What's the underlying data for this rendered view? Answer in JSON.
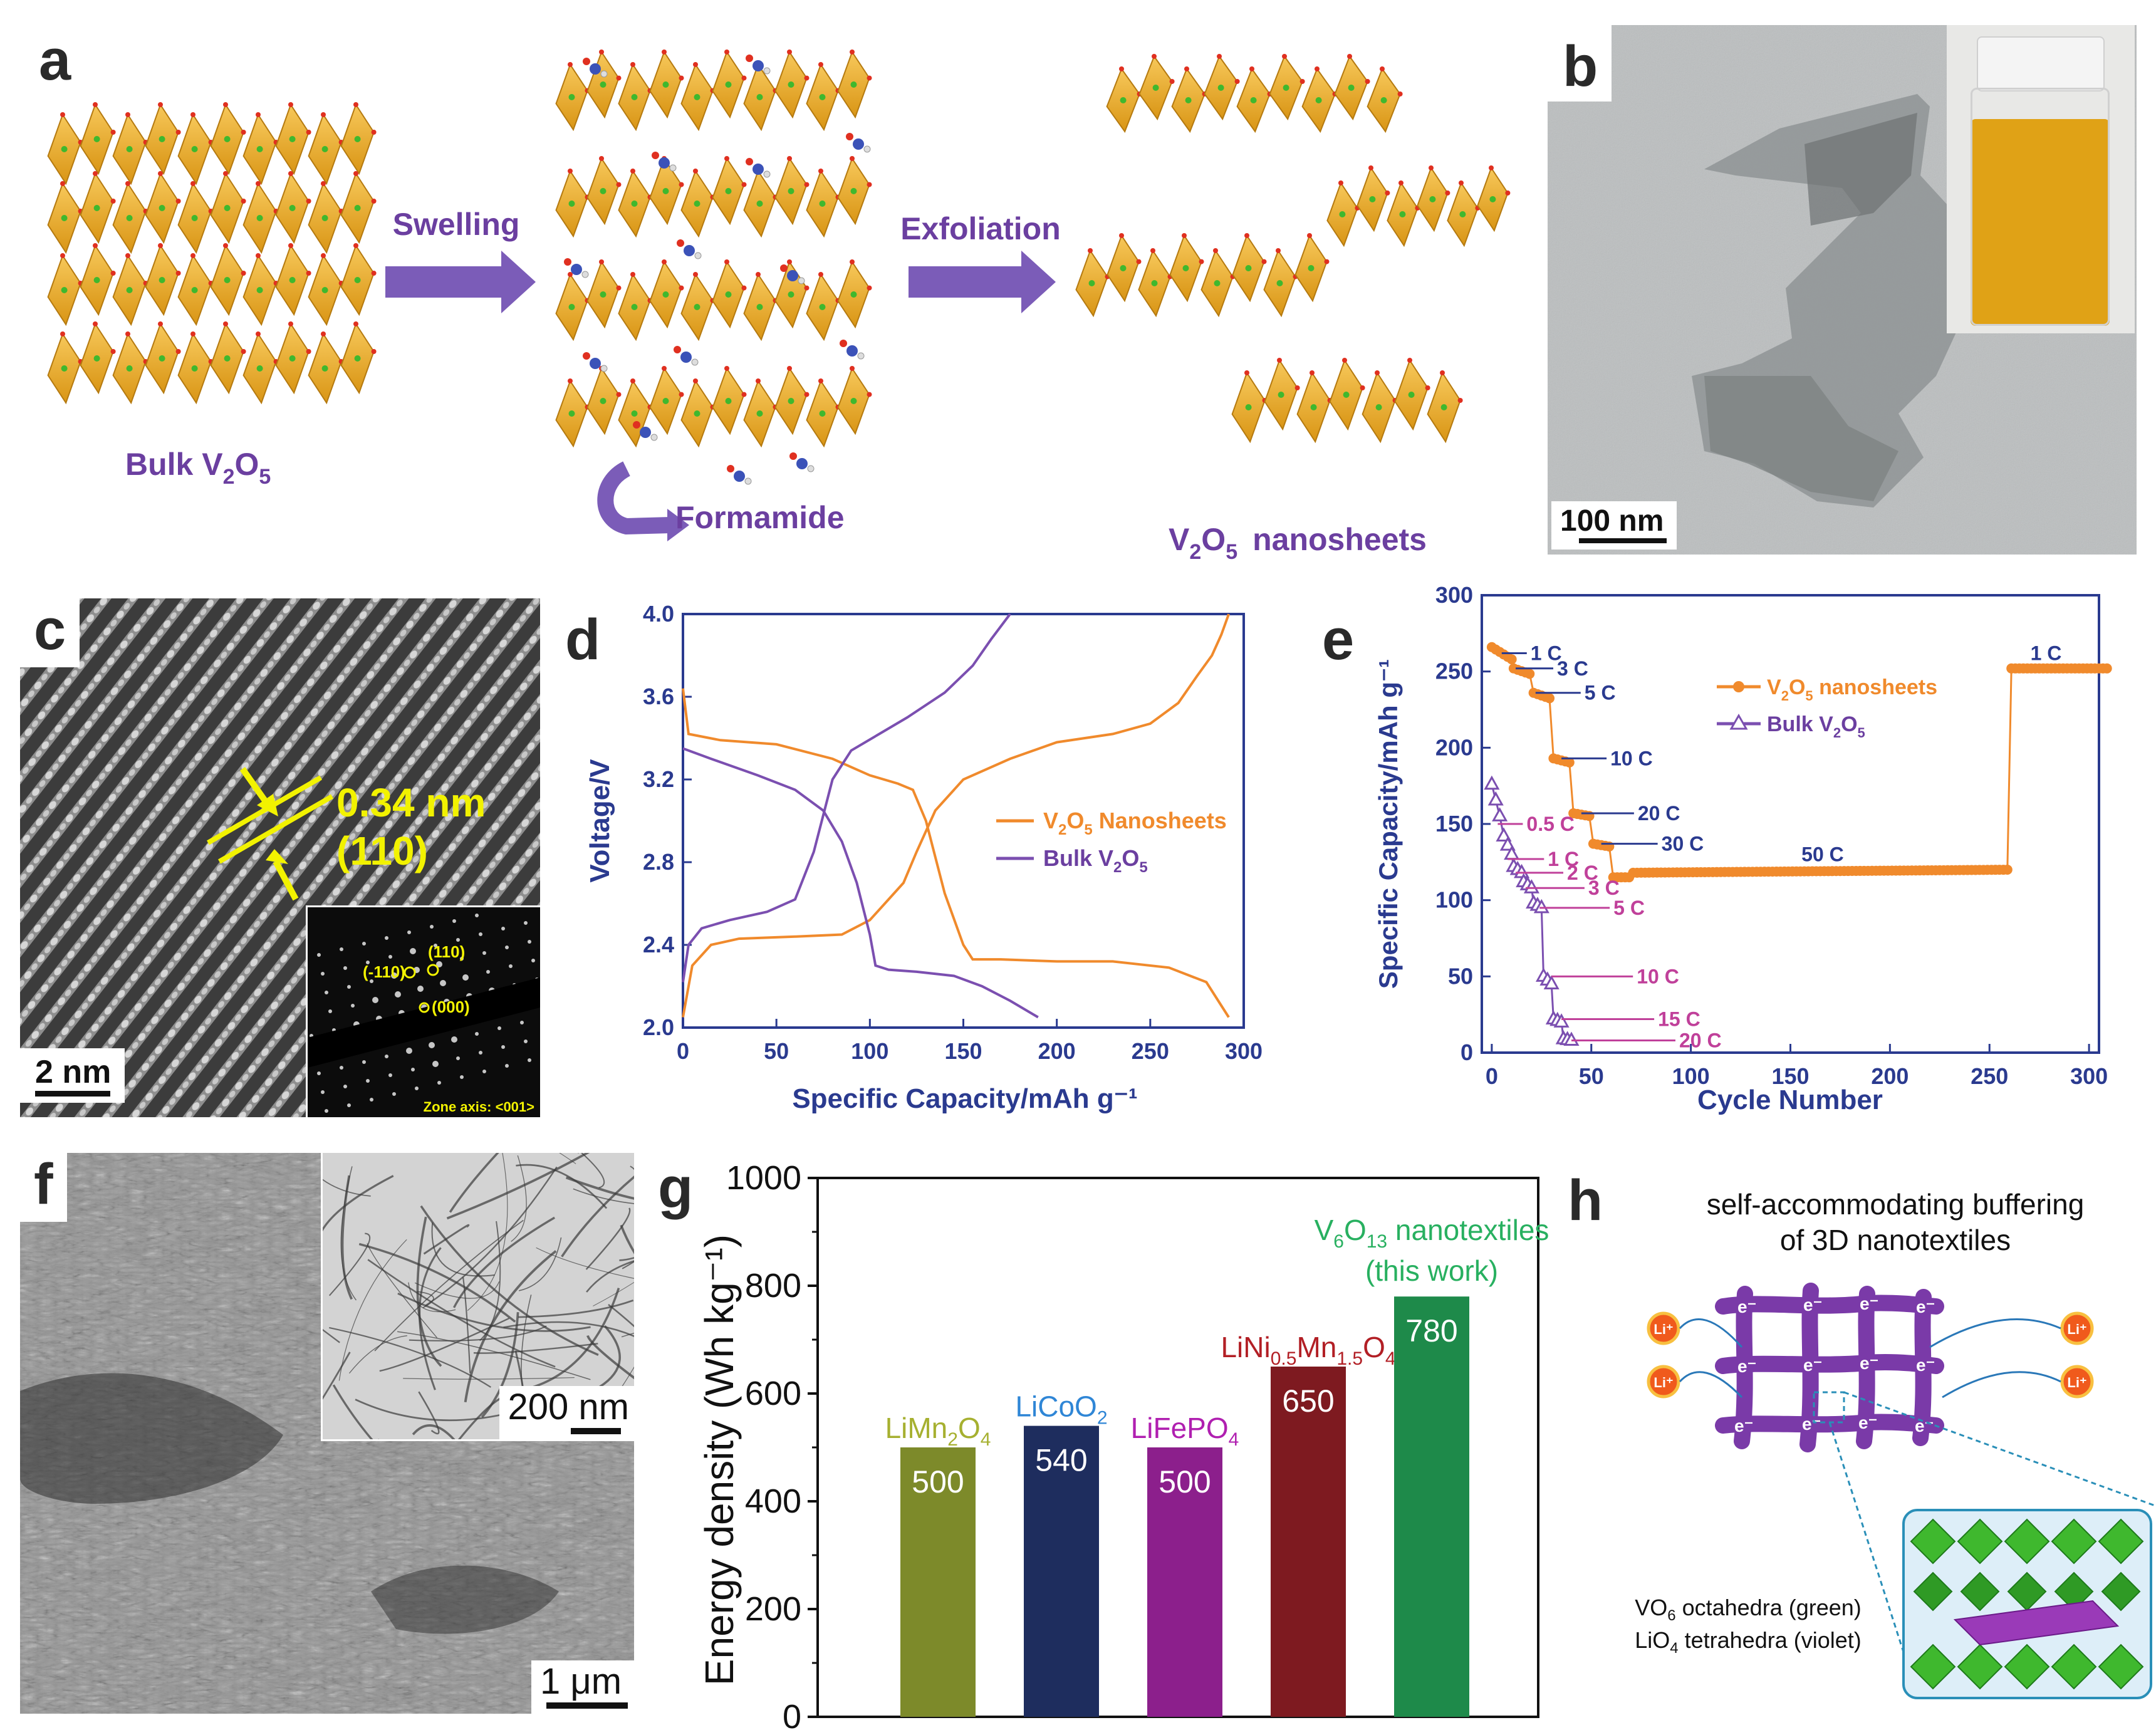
{
  "panel_labels": {
    "a": "a",
    "b": "b",
    "c": "c",
    "d": "d",
    "e": "e",
    "f": "f",
    "g": "g",
    "h": "h"
  },
  "panel_a": {
    "step1": "Bulk V₂O₅",
    "step1_parts": [
      "Bulk V",
      "2",
      "O",
      "5"
    ],
    "arrow1": "Swelling",
    "step2": "Formamide",
    "arrow2": "Exfoliation",
    "step3_parts": [
      "V",
      "2",
      "O",
      "5",
      "nanosheets"
    ],
    "colors": {
      "octahedra": "#f0b030",
      "arrow": "#7b5cb8",
      "text": "#6b3fa0"
    }
  },
  "panel_b": {
    "scale": "100 nm"
  },
  "panel_c": {
    "spacing": "0.34 nm",
    "plane": "(110)",
    "scale": "2 nm",
    "inset_labels": [
      "(-110)",
      "(110)",
      "(000)"
    ],
    "zone": "Zone axis: <001>"
  },
  "panel_d": {
    "chart_data": {
      "type": "line",
      "xlabel": "Specific Capacity/mAh g⁻¹",
      "ylabel": "Voltage/V",
      "xlim": [
        0,
        300
      ],
      "ylim": [
        2.0,
        4.0
      ],
      "xticks": [
        0,
        50,
        100,
        150,
        200,
        250,
        300
      ],
      "yticks": [
        2.0,
        2.4,
        2.8,
        3.2,
        3.6,
        4.0
      ],
      "series": [
        {
          "name": "V2O5 Nanosheets",
          "legend_parts": [
            "V",
            "2",
            "O",
            "5",
            " Nanosheets"
          ],
          "color": "#f08a2c",
          "discharge": [
            [
              0,
              3.64
            ],
            [
              3,
              3.42
            ],
            [
              20,
              3.39
            ],
            [
              50,
              3.37
            ],
            [
              80,
              3.3
            ],
            [
              100,
              3.22
            ],
            [
              115,
              3.18
            ],
            [
              123,
              3.15
            ],
            [
              130,
              3.0
            ],
            [
              140,
              2.65
            ],
            [
              150,
              2.4
            ],
            [
              155,
              2.33
            ],
            [
              170,
              2.33
            ],
            [
              200,
              2.32
            ],
            [
              230,
              2.32
            ],
            [
              260,
              2.29
            ],
            [
              280,
              2.22
            ],
            [
              292,
              2.05
            ]
          ],
          "charge": [
            [
              0,
              2.05
            ],
            [
              5,
              2.3
            ],
            [
              15,
              2.4
            ],
            [
              30,
              2.43
            ],
            [
              60,
              2.44
            ],
            [
              85,
              2.45
            ],
            [
              100,
              2.52
            ],
            [
              110,
              2.62
            ],
            [
              118,
              2.7
            ],
            [
              125,
              2.85
            ],
            [
              135,
              3.05
            ],
            [
              150,
              3.2
            ],
            [
              175,
              3.3
            ],
            [
              200,
              3.38
            ],
            [
              230,
              3.42
            ],
            [
              250,
              3.47
            ],
            [
              265,
              3.57
            ],
            [
              275,
              3.7
            ],
            [
              283,
              3.8
            ],
            [
              288,
              3.9
            ],
            [
              292,
              4.0
            ]
          ]
        },
        {
          "name": "Bulk V2O5",
          "legend_parts": [
            "Bulk V",
            "2",
            "O",
            "5"
          ],
          "color": "#7b4fb0",
          "discharge": [
            [
              0,
              3.35
            ],
            [
              15,
              3.3
            ],
            [
              40,
              3.22
            ],
            [
              60,
              3.15
            ],
            [
              75,
              3.05
            ],
            [
              85,
              2.9
            ],
            [
              93,
              2.7
            ],
            [
              100,
              2.45
            ],
            [
              103,
              2.3
            ],
            [
              110,
              2.28
            ],
            [
              125,
              2.27
            ],
            [
              145,
              2.25
            ],
            [
              160,
              2.2
            ],
            [
              175,
              2.13
            ],
            [
              190,
              2.05
            ]
          ],
          "charge": [
            [
              0,
              2.22
            ],
            [
              3,
              2.4
            ],
            [
              10,
              2.48
            ],
            [
              25,
              2.52
            ],
            [
              45,
              2.56
            ],
            [
              60,
              2.62
            ],
            [
              70,
              2.85
            ],
            [
              80,
              3.2
            ],
            [
              90,
              3.34
            ],
            [
              105,
              3.42
            ],
            [
              120,
              3.5
            ],
            [
              140,
              3.62
            ],
            [
              155,
              3.75
            ],
            [
              165,
              3.88
            ],
            [
              175,
              4.0
            ]
          ]
        }
      ]
    }
  },
  "panel_e": {
    "chart_data": {
      "type": "scatter",
      "xlabel": "Cycle Number",
      "ylabel": "Specific Capacity/mAh g⁻¹",
      "xlim": [
        0,
        300
      ],
      "ylim": [
        0,
        300
      ],
      "xticks": [
        0,
        50,
        100,
        150,
        200,
        250,
        300
      ],
      "yticks": [
        0,
        50,
        100,
        150,
        200,
        250,
        300
      ],
      "series": [
        {
          "name": "V2O5 nanosheets",
          "legend_parts": [
            "V",
            "2",
            "O",
            "5",
            " nanosheets"
          ],
          "color": "#f08a2c",
          "marker": "circle",
          "segments": [
            [
              0,
              10,
              266,
              258
            ],
            [
              11,
              20,
              252,
              248
            ],
            [
              21,
              30,
              236,
              232
            ],
            [
              31,
              40,
              193,
              190
            ],
            [
              41,
              50,
              157,
              155
            ],
            [
              51,
              60,
              137,
              135
            ],
            [
              61,
              70,
              115,
              115
            ],
            [
              71,
              260,
              118,
              120
            ],
            [
              261,
              310,
              252,
              252
            ]
          ]
        },
        {
          "name": "Bulk V2O5",
          "legend_parts": [
            "Bulk V",
            "2",
            "O",
            "5"
          ],
          "color": "#7b4fb0",
          "marker": "triangle",
          "segments": [
            [
              0,
              5,
              176,
              150
            ],
            [
              6,
              10,
              142,
              130
            ],
            [
              11,
              15,
              122,
              118
            ],
            [
              16,
              20,
              112,
              108
            ],
            [
              21,
              25,
              98,
              95
            ],
            [
              26,
              30,
              50,
              45
            ],
            [
              31,
              35,
              22,
              20
            ],
            [
              36,
              40,
              9,
              8
            ]
          ]
        }
      ],
      "rate_labels_nanosheet": [
        "1 C",
        "3 C",
        "5 C",
        "10 C",
        "20 C",
        "30 C",
        "50 C",
        "1 C"
      ],
      "rate_labels_bulk": [
        "0.5 C",
        "1 C",
        "2 C",
        "3 C",
        "5 C",
        "10 C",
        "15 C",
        "20 C"
      ]
    }
  },
  "panel_f": {
    "inset_scale": "200 nm",
    "scale": "1 μm"
  },
  "panel_g": {
    "chart_data": {
      "type": "bar",
      "ylabel": "Energy density (Wh kg⁻¹)",
      "ylim": [
        0,
        1000
      ],
      "yticks": [
        0,
        200,
        400,
        600,
        800,
        1000
      ],
      "categories": [
        {
          "label_parts": [
            "LiMn",
            "2",
            "O",
            "4"
          ],
          "value": 500,
          "value_label": "500",
          "color": "#7d8a2a",
          "label_color": "#a6b030"
        },
        {
          "label_parts": [
            "LiCoO",
            "2"
          ],
          "value": 540,
          "value_label": "540",
          "color": "#1e2d5e",
          "label_color": "#2f86d6"
        },
        {
          "label_parts": [
            "LiFePO",
            "4"
          ],
          "value": 500,
          "value_label": "500",
          "color": "#8c1f8c",
          "label_color": "#b01fb0"
        },
        {
          "label_parts": [
            "LiNi",
            "0.5",
            "Mn",
            "1.5",
            "O",
            "4"
          ],
          "value": 650,
          "value_label": "650",
          "color": "#7e1a20",
          "label_color": "#b21f25"
        },
        {
          "label_parts": [
            "V",
            "6",
            "O",
            "13",
            " nanotextiles",
            "(this work)"
          ],
          "value": 780,
          "value_label": "780",
          "color": "#1e8a4a",
          "label_color": "#28b060"
        }
      ]
    }
  },
  "panel_h": {
    "title_line1": "self-accommodating buffering",
    "title_line2": "of 3D nanotextiles",
    "ion": "Li⁺",
    "electron": "e⁻",
    "legend_line1_parts": [
      "VO",
      "6",
      " octahedra (green)"
    ],
    "legend_line2_parts": [
      "LiO",
      "4",
      " tetrahedra (violet)"
    ],
    "colors": {
      "mesh": "#7a3aa8",
      "ion": "#f05a1c",
      "green": "#3fb82e",
      "violet": "#9a3ab8"
    }
  }
}
